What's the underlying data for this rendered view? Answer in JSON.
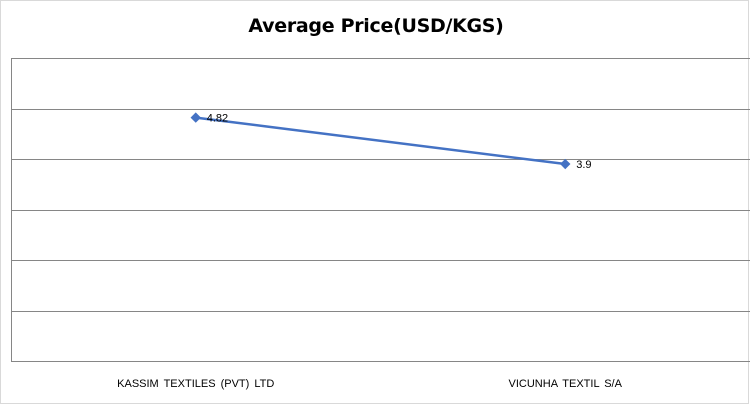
{
  "chart_data": {
    "type": "line",
    "title": "Average Price(USD/KGS)",
    "categories": [
      "KASSIM TEXTILES (PVT) LTD",
      "VICUNHA TEXTIL S/A"
    ],
    "series": [
      {
        "values": [
          4.82,
          3.9
        ]
      }
    ],
    "data_labels": [
      "4.82",
      "3.9"
    ],
    "ylim": [
      0,
      6
    ],
    "gridlines": 6,
    "grid": true,
    "legend": "none",
    "y_tick_labels": "none",
    "line_color": "#4472c4",
    "marker": "diamond"
  }
}
